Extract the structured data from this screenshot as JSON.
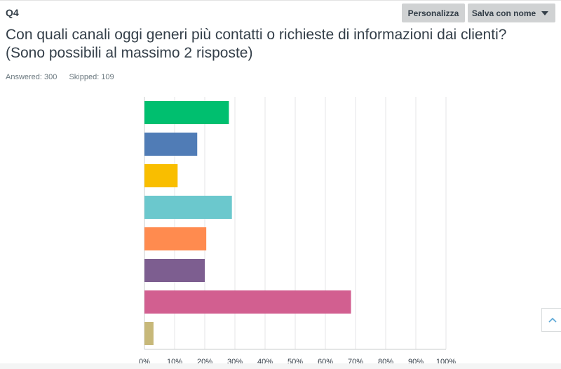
{
  "header": {
    "question_number": "Q4",
    "customize_label": "Personalizza",
    "save_label": "Salva con nome"
  },
  "question": {
    "title_line1": "Con quali canali oggi generi più contatti o richieste di informazioni dai clienti?",
    "title_line2": "(Sono possibili al massimo 2 risposte)"
  },
  "stats": {
    "answered": "Answered: 300",
    "skipped": "Skipped: 109"
  },
  "icons": {
    "caret": "chevron-down-icon",
    "scroll_top": "chevron-up-icon"
  },
  "chart_data": {
    "type": "bar",
    "orientation": "horizontal",
    "categories": [
      "",
      "",
      "",
      "",
      "",
      "",
      "",
      ""
    ],
    "values": [
      28,
      17.5,
      11,
      29,
      20.5,
      20,
      68.5,
      3
    ],
    "colors": [
      "#00bf6f",
      "#507cb6",
      "#f9be00",
      "#6bc8cd",
      "#ff8b4f",
      "#7d5e90",
      "#d25f90",
      "#c7b879"
    ],
    "xlim": [
      0,
      100
    ],
    "xticks": [
      0,
      10,
      20,
      30,
      40,
      50,
      60,
      70,
      80,
      90,
      100
    ],
    "xtick_labels": [
      "0%",
      "10%",
      "20%",
      "30%",
      "40%",
      "50%",
      "60%",
      "70%",
      "80%",
      "90%",
      "100%"
    ],
    "grid": true,
    "title": "",
    "xlabel": "",
    "ylabel": ""
  }
}
